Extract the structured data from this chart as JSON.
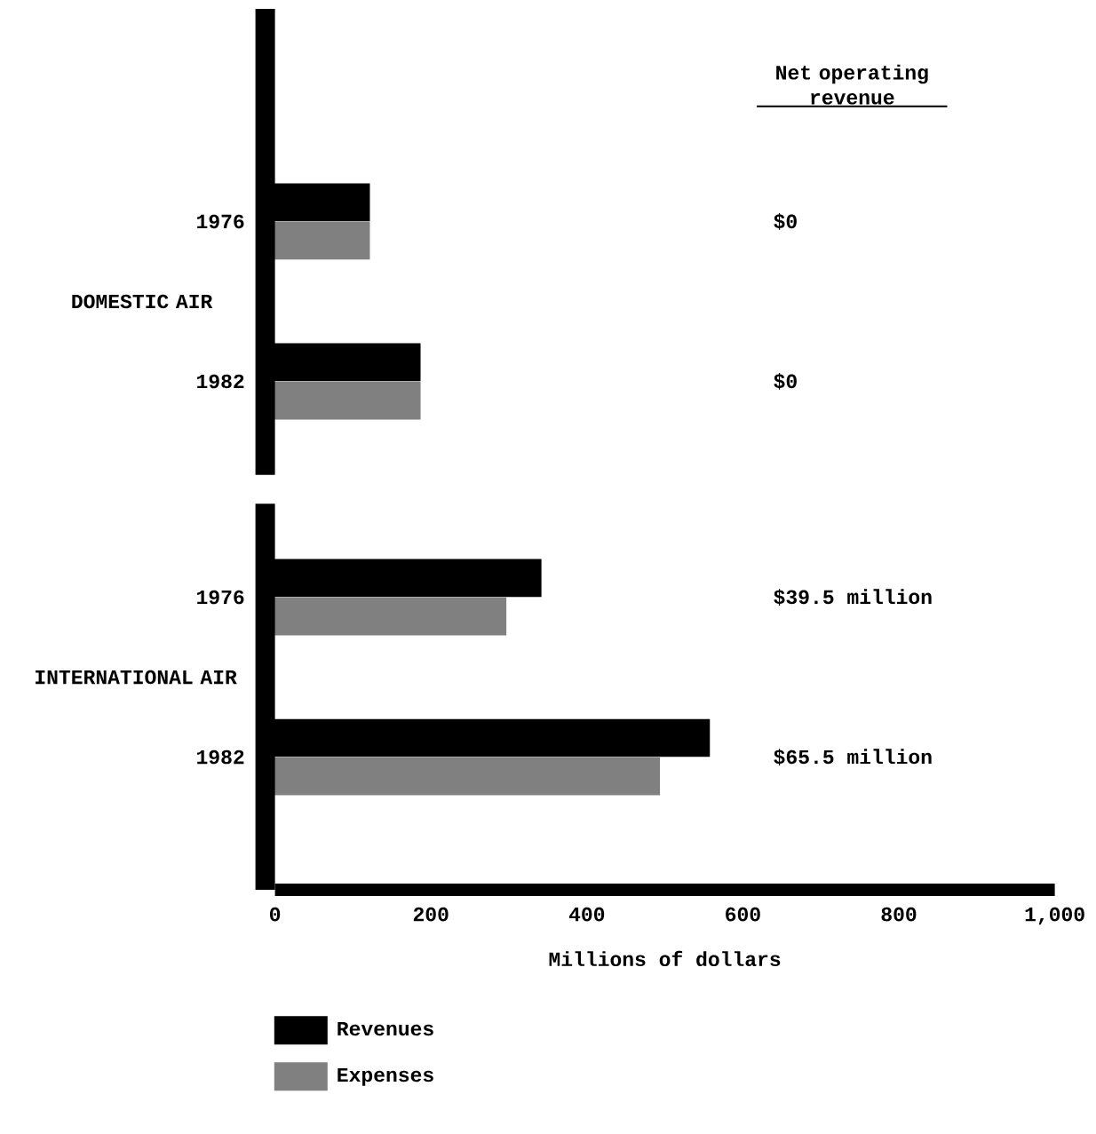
{
  "chart_data": {
    "type": "bar",
    "orientation": "horizontal",
    "categories": [
      "1976",
      "1982",
      "1976",
      "1982"
    ],
    "series": [
      {
        "name": "Revenues",
        "color": "#000000",
        "values": [
          120,
          185,
          340,
          556
        ]
      },
      {
        "name": "Expenses",
        "color": "#808080",
        "values": [
          120,
          185,
          295,
          492
        ]
      }
    ],
    "xlim": [
      0,
      1000
    ],
    "xticks": [
      0,
      200,
      400,
      600,
      800,
      {
        "value": 1000,
        "label": "1,000"
      }
    ],
    "xlabel": "Millions of dollars",
    "legend": "bottom",
    "annotations": [
      "Net operating revenue",
      "$0",
      "$0",
      "$39.5 million",
      "$65.5 million",
      "DOMESTIC AIR",
      "INTERNATIONAL AIR"
    ]
  }
}
